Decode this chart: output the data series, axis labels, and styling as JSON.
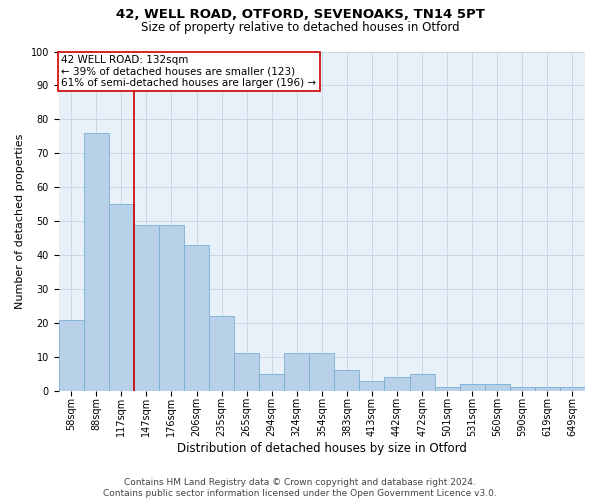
{
  "title1": "42, WELL ROAD, OTFORD, SEVENOAKS, TN14 5PT",
  "title2": "Size of property relative to detached houses in Otford",
  "xlabel": "Distribution of detached houses by size in Otford",
  "ylabel": "Number of detached properties",
  "categories": [
    "58sqm",
    "88sqm",
    "117sqm",
    "147sqm",
    "176sqm",
    "206sqm",
    "235sqm",
    "265sqm",
    "294sqm",
    "324sqm",
    "354sqm",
    "383sqm",
    "413sqm",
    "442sqm",
    "472sqm",
    "501sqm",
    "531sqm",
    "560sqm",
    "590sqm",
    "619sqm",
    "649sqm"
  ],
  "values": [
    21,
    76,
    55,
    49,
    49,
    43,
    22,
    11,
    5,
    11,
    11,
    6,
    3,
    4,
    5,
    1,
    2,
    2,
    1,
    1,
    1
  ],
  "bar_color": "#b8d0e8",
  "bar_edge_color": "#7aafd4",
  "vline_color": "#cc0000",
  "annotation_line1": "42 WELL ROAD: 132sqm",
  "annotation_line2": "← 39% of detached houses are smaller (123)",
  "annotation_line3": "61% of semi-detached houses are larger (196) →",
  "annotation_box_color": "#ffffff",
  "annotation_box_edge": "#cc0000",
  "ylim": [
    0,
    100
  ],
  "yticks": [
    0,
    10,
    20,
    30,
    40,
    50,
    60,
    70,
    80,
    90,
    100
  ],
  "grid_color": "#c8d8e8",
  "bg_color": "#e8f0f8",
  "footnote": "Contains HM Land Registry data © Crown copyright and database right 2024.\nContains public sector information licensed under the Open Government Licence v3.0.",
  "title_fontsize": 9.5,
  "subtitle_fontsize": 8.5,
  "axis_label_fontsize": 8,
  "tick_fontsize": 7,
  "annotation_fontsize": 7.5,
  "footnote_fontsize": 6.5
}
